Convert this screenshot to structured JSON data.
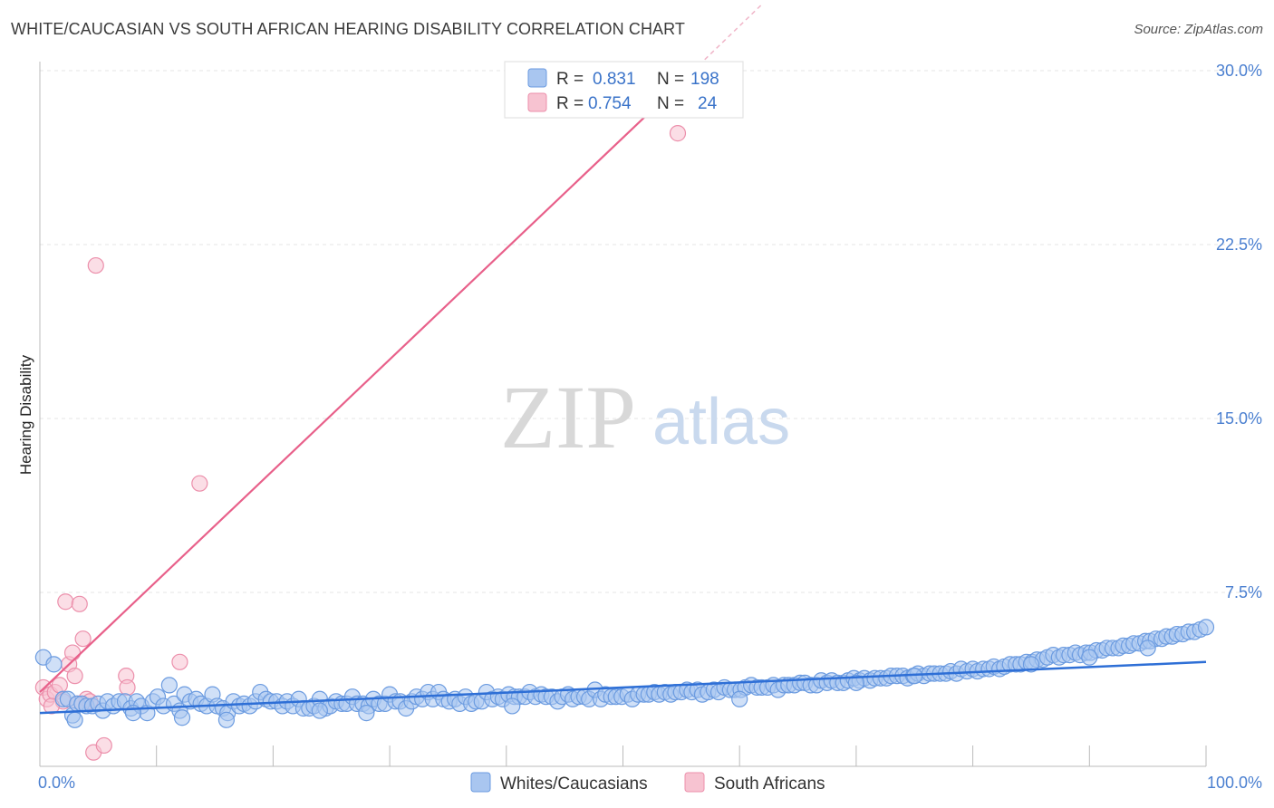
{
  "title": "WHITE/CAUCASIAN VS SOUTH AFRICAN HEARING DISABILITY CORRELATION CHART",
  "source": "Source: ZipAtlas.com",
  "watermark": {
    "zip": "ZIP",
    "atlas": "atlas"
  },
  "colors": {
    "blue_fill": "#a9c6f0",
    "blue_stroke": "#6b9be0",
    "blue_line": "#2e6fd6",
    "pink_fill": "#f7c3d1",
    "pink_stroke": "#ec8fab",
    "pink_line": "#e8608a",
    "tick_text": "#4a7fd0",
    "grid": "#e5e5e5"
  },
  "legend": {
    "rows": [
      {
        "r_label": "R =",
        "r_value": "0.831",
        "n_label": "N =",
        "n_value": "198"
      },
      {
        "r_label": "R =",
        "r_value": "0.754",
        "n_label": "N =",
        "n_value": "24"
      }
    ]
  },
  "bottom_legend": [
    "Whites/Caucasians",
    "South Africans"
  ],
  "chart_data": {
    "type": "scatter",
    "title": "WHITE/CAUCASIAN VS SOUTH AFRICAN HEARING DISABILITY CORRELATION CHART",
    "xlabel": "",
    "ylabel": "Hearing Disability",
    "xlim": [
      0,
      100
    ],
    "ylim": [
      0,
      30
    ],
    "x_tick_labels": [
      "0.0%",
      "100.0%"
    ],
    "y_ticks": [
      7.5,
      15.0,
      22.5,
      30.0
    ],
    "y_tick_labels": [
      "7.5%",
      "15.0%",
      "22.5%",
      "30.0%"
    ],
    "series": [
      {
        "name": "Whites/Caucasians",
        "r": 0.831,
        "n": 198,
        "trend": {
          "x": [
            0,
            100
          ],
          "y": [
            2.3,
            4.5
          ]
        },
        "points": [
          [
            0.3,
            4.7
          ],
          [
            1.2,
            4.4
          ],
          [
            2.0,
            2.9
          ],
          [
            2.4,
            2.9
          ],
          [
            2.8,
            2.2
          ],
          [
            3.2,
            2.7
          ],
          [
            3.6,
            2.7
          ],
          [
            4.0,
            2.6
          ],
          [
            4.5,
            2.6
          ],
          [
            5.0,
            2.7
          ],
          [
            5.4,
            2.4
          ],
          [
            5.8,
            2.8
          ],
          [
            6.3,
            2.6
          ],
          [
            6.8,
            2.8
          ],
          [
            7.3,
            2.8
          ],
          [
            7.8,
            2.5
          ],
          [
            8.3,
            2.8
          ],
          [
            8.7,
            2.6
          ],
          [
            9.2,
            2.3
          ],
          [
            9.7,
            2.8
          ],
          [
            10.1,
            3.0
          ],
          [
            10.6,
            2.6
          ],
          [
            11.1,
            3.5
          ],
          [
            11.5,
            2.7
          ],
          [
            12.0,
            2.4
          ],
          [
            12.4,
            3.1
          ],
          [
            12.9,
            2.8
          ],
          [
            13.4,
            2.9
          ],
          [
            13.8,
            2.7
          ],
          [
            14.3,
            2.6
          ],
          [
            14.8,
            3.1
          ],
          [
            15.2,
            2.6
          ],
          [
            15.7,
            2.5
          ],
          [
            16.1,
            2.3
          ],
          [
            16.6,
            2.8
          ],
          [
            17.1,
            2.6
          ],
          [
            17.5,
            2.7
          ],
          [
            18.0,
            2.6
          ],
          [
            18.5,
            2.8
          ],
          [
            18.9,
            3.2
          ],
          [
            19.4,
            2.9
          ],
          [
            19.8,
            2.8
          ],
          [
            20.3,
            2.8
          ],
          [
            20.8,
            2.6
          ],
          [
            21.2,
            2.8
          ],
          [
            21.7,
            2.6
          ],
          [
            22.2,
            2.9
          ],
          [
            22.6,
            2.5
          ],
          [
            23.1,
            2.5
          ],
          [
            23.5,
            2.6
          ],
          [
            24.0,
            2.9
          ],
          [
            24.5,
            2.5
          ],
          [
            24.9,
            2.6
          ],
          [
            25.4,
            2.8
          ],
          [
            25.9,
            2.7
          ],
          [
            26.3,
            2.7
          ],
          [
            26.8,
            3.0
          ],
          [
            27.2,
            2.7
          ],
          [
            27.7,
            2.7
          ],
          [
            28.2,
            2.6
          ],
          [
            28.6,
            2.9
          ],
          [
            29.1,
            2.7
          ],
          [
            29.6,
            2.7
          ],
          [
            30.0,
            3.1
          ],
          [
            30.5,
            2.8
          ],
          [
            30.9,
            2.8
          ],
          [
            31.4,
            2.5
          ],
          [
            31.9,
            2.8
          ],
          [
            32.3,
            3.0
          ],
          [
            32.8,
            2.9
          ],
          [
            33.3,
            3.2
          ],
          [
            33.7,
            2.9
          ],
          [
            34.2,
            3.2
          ],
          [
            34.6,
            2.9
          ],
          [
            35.1,
            2.8
          ],
          [
            35.6,
            2.9
          ],
          [
            36.0,
            2.7
          ],
          [
            36.5,
            3.0
          ],
          [
            37.0,
            2.7
          ],
          [
            37.4,
            2.8
          ],
          [
            37.9,
            2.8
          ],
          [
            38.3,
            3.2
          ],
          [
            38.8,
            2.9
          ],
          [
            39.3,
            3.0
          ],
          [
            39.7,
            2.9
          ],
          [
            40.2,
            3.1
          ],
          [
            40.7,
            3.0
          ],
          [
            41.1,
            3.0
          ],
          [
            41.6,
            3.0
          ],
          [
            42.0,
            3.2
          ],
          [
            42.5,
            3.0
          ],
          [
            43.0,
            3.1
          ],
          [
            43.4,
            3.0
          ],
          [
            43.9,
            3.0
          ],
          [
            44.4,
            2.8
          ],
          [
            44.8,
            3.0
          ],
          [
            45.3,
            3.1
          ],
          [
            45.7,
            2.9
          ],
          [
            46.2,
            3.0
          ],
          [
            46.7,
            3.0
          ],
          [
            47.1,
            2.9
          ],
          [
            47.6,
            3.3
          ],
          [
            48.1,
            2.9
          ],
          [
            48.5,
            3.1
          ],
          [
            49.0,
            3.0
          ],
          [
            49.4,
            3.0
          ],
          [
            49.9,
            3.0
          ],
          [
            50.4,
            3.1
          ],
          [
            50.8,
            2.9
          ],
          [
            51.3,
            3.1
          ],
          [
            51.8,
            3.1
          ],
          [
            52.2,
            3.1
          ],
          [
            52.7,
            3.2
          ],
          [
            53.1,
            3.1
          ],
          [
            53.6,
            3.2
          ],
          [
            54.1,
            3.1
          ],
          [
            54.5,
            3.2
          ],
          [
            55.0,
            3.2
          ],
          [
            55.5,
            3.3
          ],
          [
            55.9,
            3.2
          ],
          [
            56.4,
            3.3
          ],
          [
            56.8,
            3.1
          ],
          [
            57.3,
            3.2
          ],
          [
            57.8,
            3.3
          ],
          [
            58.2,
            3.2
          ],
          [
            58.7,
            3.4
          ],
          [
            59.2,
            3.3
          ],
          [
            59.6,
            3.3
          ],
          [
            60.1,
            3.3
          ],
          [
            60.5,
            3.4
          ],
          [
            61.0,
            3.5
          ],
          [
            61.5,
            3.4
          ],
          [
            61.9,
            3.4
          ],
          [
            62.4,
            3.4
          ],
          [
            62.9,
            3.5
          ],
          [
            63.3,
            3.3
          ],
          [
            63.8,
            3.5
          ],
          [
            64.2,
            3.5
          ],
          [
            64.7,
            3.5
          ],
          [
            65.2,
            3.6
          ],
          [
            65.6,
            3.6
          ],
          [
            66.1,
            3.5
          ],
          [
            66.6,
            3.5
          ],
          [
            67.0,
            3.7
          ],
          [
            67.5,
            3.6
          ],
          [
            67.9,
            3.7
          ],
          [
            68.4,
            3.6
          ],
          [
            68.9,
            3.6
          ],
          [
            69.3,
            3.7
          ],
          [
            69.8,
            3.8
          ],
          [
            70.3,
            3.7
          ],
          [
            70.7,
            3.8
          ],
          [
            71.2,
            3.7
          ],
          [
            71.6,
            3.8
          ],
          [
            72.1,
            3.8
          ],
          [
            72.6,
            3.8
          ],
          [
            73.0,
            3.9
          ],
          [
            73.5,
            3.9
          ],
          [
            74.0,
            3.9
          ],
          [
            74.4,
            3.8
          ],
          [
            74.9,
            3.9
          ],
          [
            75.3,
            4.0
          ],
          [
            75.8,
            3.9
          ],
          [
            76.3,
            4.0
          ],
          [
            76.7,
            4.0
          ],
          [
            77.2,
            4.0
          ],
          [
            77.7,
            4.0
          ],
          [
            78.1,
            4.1
          ],
          [
            78.6,
            4.0
          ],
          [
            79.0,
            4.2
          ],
          [
            79.5,
            4.1
          ],
          [
            80.0,
            4.2
          ],
          [
            80.4,
            4.1
          ],
          [
            80.9,
            4.2
          ],
          [
            81.4,
            4.2
          ],
          [
            81.8,
            4.3
          ],
          [
            82.3,
            4.2
          ],
          [
            82.7,
            4.3
          ],
          [
            83.2,
            4.4
          ],
          [
            83.7,
            4.4
          ],
          [
            84.1,
            4.4
          ],
          [
            84.6,
            4.5
          ],
          [
            85.1,
            4.5
          ],
          [
            85.5,
            4.6
          ],
          [
            86.0,
            4.6
          ],
          [
            86.4,
            4.7
          ],
          [
            86.9,
            4.8
          ],
          [
            87.4,
            4.7
          ],
          [
            87.8,
            4.8
          ],
          [
            88.3,
            4.8
          ],
          [
            88.8,
            4.9
          ],
          [
            89.2,
            4.8
          ],
          [
            89.7,
            4.9
          ],
          [
            90.1,
            4.9
          ],
          [
            90.6,
            5.0
          ],
          [
            91.1,
            5.0
          ],
          [
            91.5,
            5.1
          ],
          [
            92.0,
            5.1
          ],
          [
            92.5,
            5.1
          ],
          [
            92.9,
            5.2
          ],
          [
            93.4,
            5.2
          ],
          [
            93.8,
            5.3
          ],
          [
            94.3,
            5.3
          ],
          [
            94.8,
            5.4
          ],
          [
            95.2,
            5.4
          ],
          [
            95.7,
            5.5
          ],
          [
            96.2,
            5.5
          ],
          [
            96.6,
            5.6
          ],
          [
            97.1,
            5.6
          ],
          [
            97.5,
            5.7
          ],
          [
            98.0,
            5.7
          ],
          [
            98.5,
            5.8
          ],
          [
            99.0,
            5.8
          ],
          [
            99.5,
            5.9
          ],
          [
            100.0,
            6.0
          ],
          [
            40.5,
            2.6
          ],
          [
            60.0,
            2.9
          ],
          [
            28.0,
            2.3
          ],
          [
            12.2,
            2.1
          ],
          [
            16.0,
            2.0
          ],
          [
            24.0,
            2.4
          ],
          [
            8.0,
            2.3
          ],
          [
            3.0,
            2.0
          ],
          [
            70.0,
            3.6
          ],
          [
            85.0,
            4.4
          ],
          [
            90.0,
            4.7
          ],
          [
            95.0,
            5.1
          ],
          [
            75.0,
            3.9
          ]
        ]
      },
      {
        "name": "South Africans",
        "r": 0.754,
        "n": 24,
        "trend": {
          "x": [
            0,
            55
          ],
          "y": [
            3.2,
            29.5
          ]
        },
        "trend_dashed": {
          "x": [
            55,
            62
          ],
          "y": [
            29.5,
            32.9
          ]
        },
        "points": [
          [
            0.3,
            3.4
          ],
          [
            0.6,
            2.9
          ],
          [
            0.9,
            3.1
          ],
          [
            1.3,
            3.2
          ],
          [
            1.7,
            3.5
          ],
          [
            2.0,
            2.8
          ],
          [
            2.2,
            7.1
          ],
          [
            2.5,
            4.4
          ],
          [
            2.8,
            4.9
          ],
          [
            3.0,
            3.9
          ],
          [
            3.4,
            7.0
          ],
          [
            3.7,
            5.5
          ],
          [
            4.0,
            2.9
          ],
          [
            4.3,
            2.8
          ],
          [
            4.6,
            0.6
          ],
          [
            4.8,
            21.6
          ],
          [
            5.5,
            0.9
          ],
          [
            7.4,
            3.9
          ],
          [
            7.5,
            3.4
          ],
          [
            12.0,
            4.5
          ],
          [
            13.7,
            12.2
          ],
          [
            54.7,
            27.3
          ],
          [
            1.0,
            2.6
          ],
          [
            3.2,
            2.7
          ]
        ]
      }
    ]
  }
}
